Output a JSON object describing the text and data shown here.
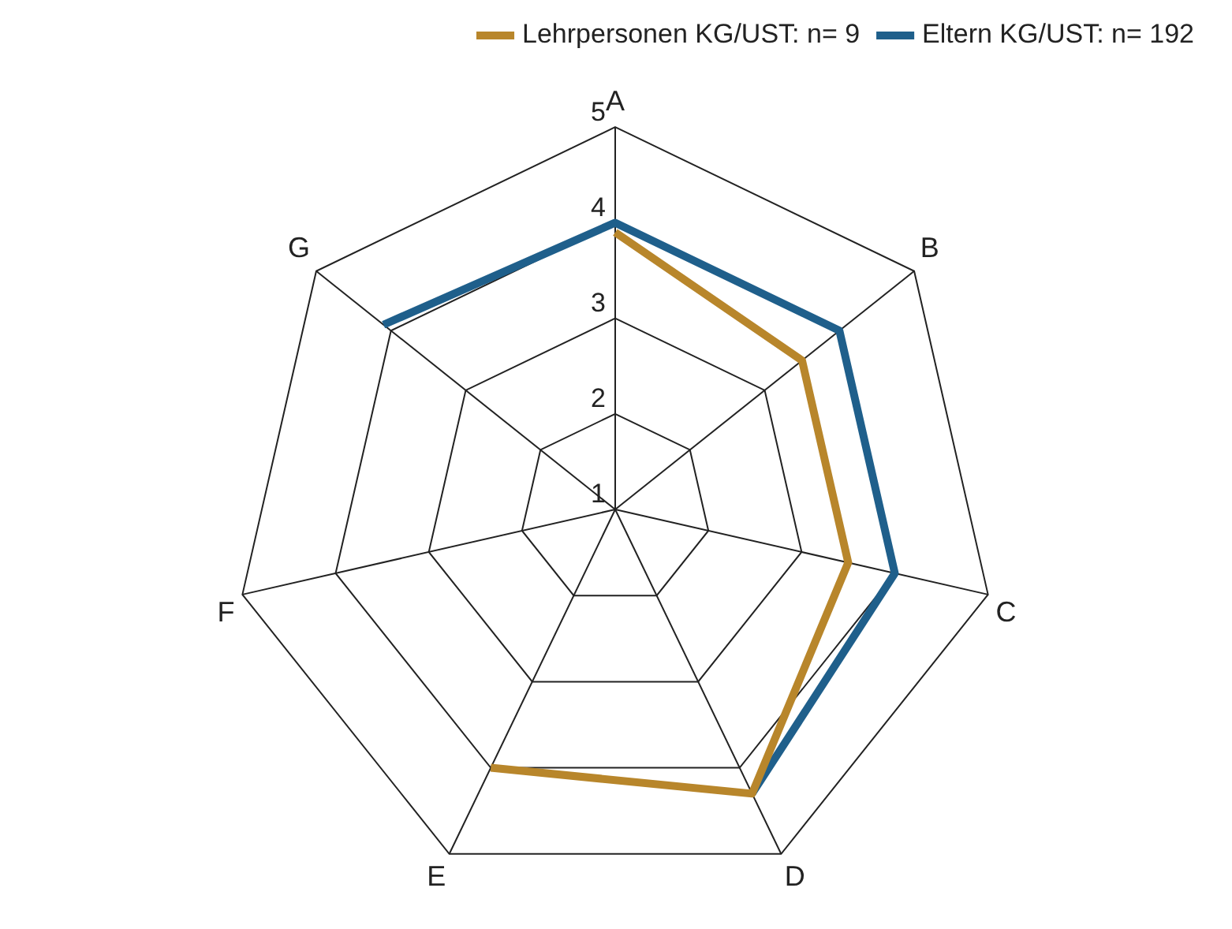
{
  "chart_data": {
    "type": "radar",
    "categories": [
      "A",
      "B",
      "C",
      "D",
      "E",
      "F",
      "G"
    ],
    "ylim": [
      1,
      5
    ],
    "yticks": [
      1,
      2,
      3,
      4,
      5
    ],
    "grid": true,
    "legend": "top right",
    "series": [
      {
        "name": "Lehrpersonen KG/UST: n= 9",
        "color": "#b8862b",
        "values": [
          3.9,
          3.5,
          3.5,
          4.3,
          4.0,
          null,
          null
        ]
      },
      {
        "name": "Eltern KG/UST: n= 192",
        "color": "#1f5f8b",
        "values": [
          4.0,
          4.0,
          4.0,
          4.3,
          null,
          null,
          4.1
        ]
      }
    ]
  }
}
